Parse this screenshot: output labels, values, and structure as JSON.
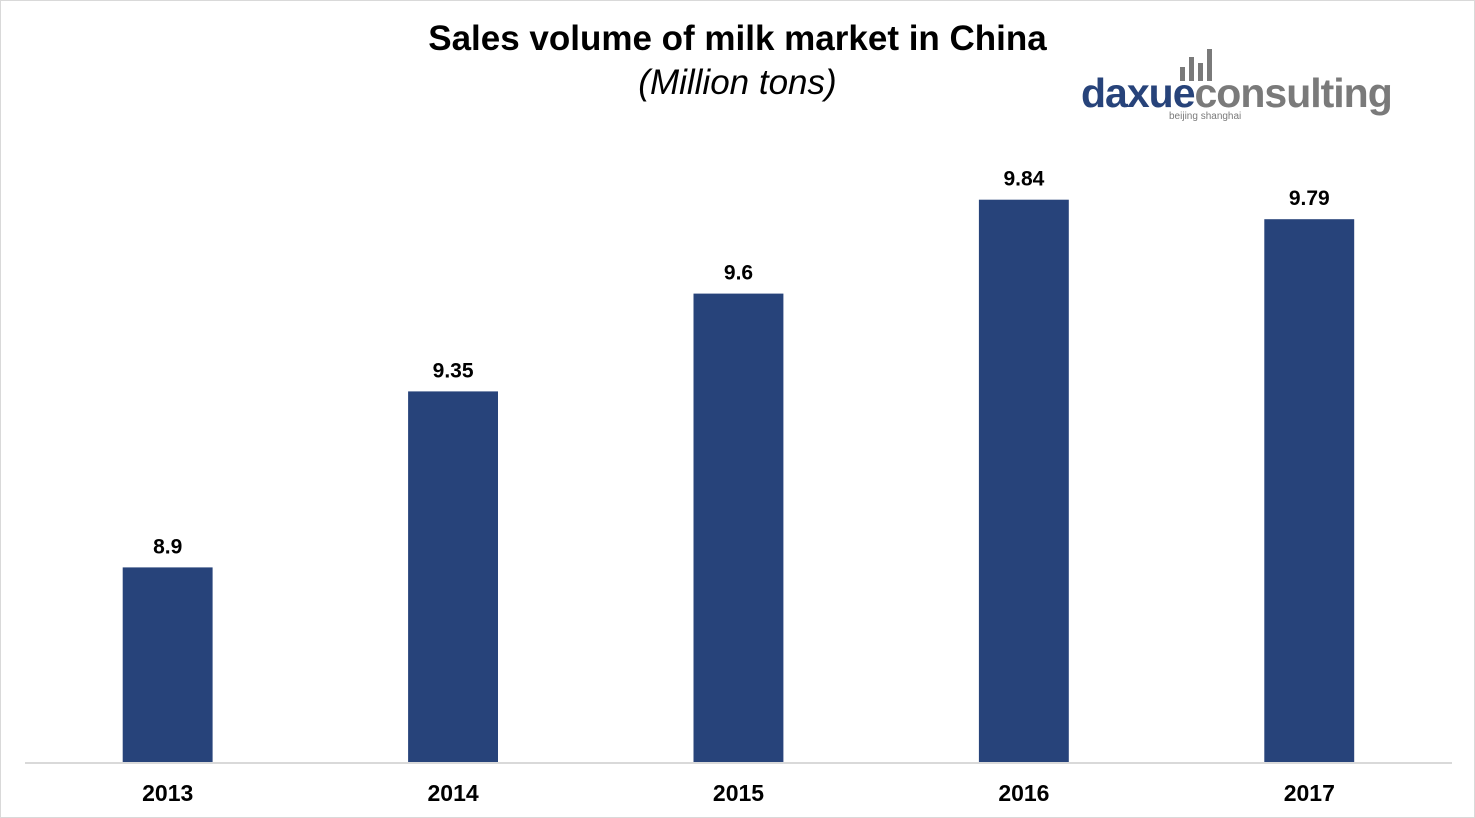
{
  "chart_data": {
    "type": "bar",
    "title": "Sales volume of milk market in China",
    "subtitle": "(Million tons)",
    "categories": [
      "2013",
      "2014",
      "2015",
      "2016",
      "2017"
    ],
    "values": [
      8.9,
      9.35,
      9.6,
      9.84,
      9.79
    ],
    "data_labels": [
      "8.9",
      "9.35",
      "9.6",
      "9.84",
      "9.79"
    ],
    "bar_color": "#27437a",
    "ylim": [
      8.4,
      9.99
    ],
    "y_axis_visible": false,
    "grid": false,
    "legend": "none"
  },
  "logo": {
    "brand_part1": "daxue",
    "brand_part2": "consulting",
    "tagline": "beijing shanghai",
    "icon": "bar-chart-icon",
    "primary_color": "#27437a",
    "secondary_color": "#7a7a7a"
  }
}
